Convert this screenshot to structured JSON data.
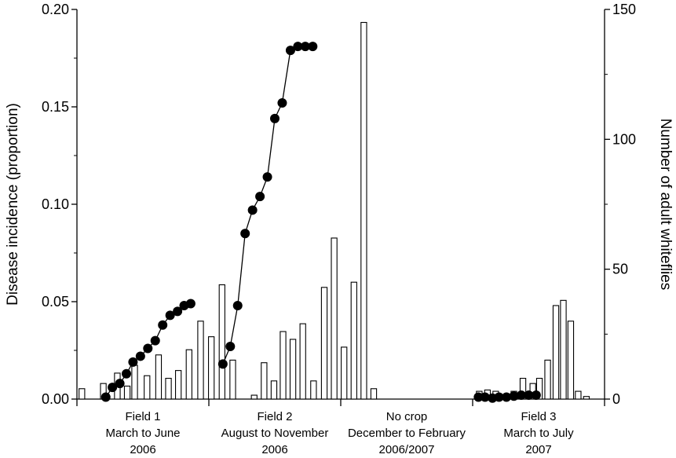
{
  "chart_data": {
    "type": "bar",
    "overlay_type": "line",
    "y_left_label": "Disease incidence (proportion)",
    "y_right_label": "Number of adult whiteflies",
    "y_left_lim": [
      0,
      0.2
    ],
    "y_right_lim": [
      0,
      150
    ],
    "y_left_ticks": [
      "0.00",
      "0.05",
      "0.10",
      "0.15",
      "0.20"
    ],
    "y_right_ticks": [
      "0",
      "50",
      "100",
      "150"
    ],
    "grid": false,
    "periods": [
      {
        "line1": "Field 1",
        "line2": "March to June",
        "line3": "2006"
      },
      {
        "line1": "Field 2",
        "line2": "August to November",
        "line3": "2006"
      },
      {
        "line1": "No crop",
        "line2": "December to February",
        "line3": "2006/2007"
      },
      {
        "line1": "Field 3",
        "line2": "March to July",
        "line3": "2007"
      }
    ],
    "whiteflies_bars": {
      "axis": "right",
      "x": [
        0.6,
        3.2,
        4.9,
        6.1,
        7.0,
        8.5,
        9.9,
        11.1,
        12.3,
        13.6,
        15.0,
        16.3,
        17.6,
        18.9,
        21.5,
        22.7,
        23.9,
        25.0,
        26.2,
        27.4,
        28.7,
        30.0,
        31.2,
        32.4,
        33.6,
        34.8,
        36.0,
        48.8,
        49.8,
        50.8,
        51.8,
        53.0,
        54.1,
        55.3,
        56.1,
        57.1,
        58.1,
        59.0,
        59.9,
        60.8,
        61.8
      ],
      "values": [
        4,
        6,
        10,
        5,
        13,
        9,
        17,
        8,
        11,
        19,
        30,
        24,
        44,
        15,
        1.5,
        14,
        7,
        26,
        23,
        29,
        7,
        43,
        62,
        20,
        45,
        145,
        4,
        3,
        3.5,
        3,
        1.5,
        3,
        8,
        6,
        8,
        15,
        36,
        38,
        30,
        3,
        1
      ]
    },
    "incidence_series": {
      "axis": "left",
      "name": "",
      "x": [
        3.5,
        4.3,
        5.2,
        6.0,
        6.8,
        7.7,
        8.6,
        9.5,
        10.4,
        11.3,
        12.2,
        13.0,
        13.8,
        17.7,
        18.6,
        19.5,
        20.4,
        21.3,
        22.2,
        23.1,
        24.0,
        24.9,
        25.9,
        26.8,
        27.7,
        28.6,
        48.7,
        49.5,
        50.4,
        51.2,
        52.1,
        53.0,
        53.9,
        54.8,
        55.7
      ],
      "values": [
        0.001,
        0.006,
        0.008,
        0.013,
        0.019,
        0.022,
        0.026,
        0.03,
        0.038,
        0.043,
        0.045,
        0.048,
        0.049,
        0.018,
        0.027,
        0.048,
        0.085,
        0.097,
        0.104,
        0.114,
        0.144,
        0.152,
        0.179,
        0.181,
        0.181,
        0.181,
        0.001,
        0.001,
        0.0005,
        0.001,
        0.001,
        0.0015,
        0.002,
        0.002,
        0.002
      ]
    }
  }
}
